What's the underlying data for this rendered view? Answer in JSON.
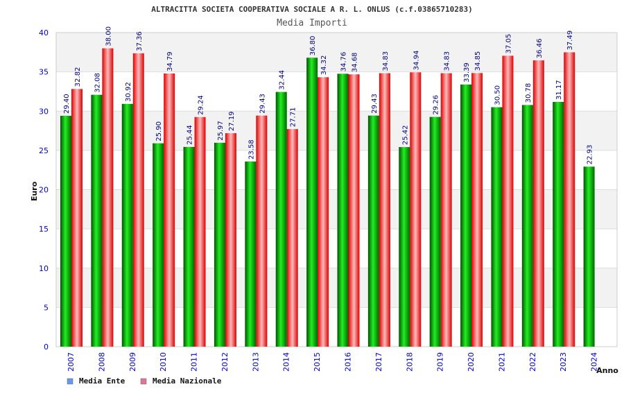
{
  "chart_data": {
    "type": "bar",
    "title": "ALTRACITTA SOCIETA COOPERATIVA SOCIALE A R. L. ONLUS (c.f.03865710283)",
    "subtitle": "Media Importi",
    "xlabel": "Anno",
    "ylabel": "Euro",
    "ylim": [
      0,
      40
    ],
    "yticks": [
      0,
      5,
      10,
      15,
      20,
      25,
      30,
      35,
      40
    ],
    "grid": "horizontal bands",
    "legend_position": "bottom-left",
    "categories": [
      "2007",
      "2008",
      "2009",
      "2010",
      "2011",
      "2012",
      "2013",
      "2014",
      "2015",
      "2016",
      "2017",
      "2018",
      "2019",
      "2020",
      "2021",
      "2022",
      "2023",
      "2024"
    ],
    "series": [
      {
        "name": "Media Ente",
        "color": "#00aa00",
        "legend_color": "#6699ee",
        "values": [
          29.4,
          32.08,
          30.92,
          25.9,
          25.44,
          25.97,
          23.58,
          32.44,
          36.8,
          34.76,
          29.43,
          25.42,
          29.26,
          33.39,
          30.5,
          30.78,
          31.17,
          22.93
        ],
        "labels": [
          "29.40",
          "32.08",
          "30.92",
          "25.90",
          "25.44",
          "25.97",
          "23.58",
          "32.44",
          "36.80",
          "34.76",
          "29.43",
          "25.42",
          "29.26",
          "33.39",
          "30.50",
          "30.78",
          "31.17",
          "22.93"
        ]
      },
      {
        "name": "Media Nazionale",
        "color": "#ee1111",
        "legend_color": "#dd7799",
        "values": [
          32.82,
          38.0,
          37.36,
          34.79,
          29.24,
          27.19,
          29.43,
          27.71,
          34.32,
          34.68,
          34.83,
          34.94,
          34.83,
          34.85,
          37.05,
          36.46,
          37.49,
          null
        ],
        "labels": [
          "32.82",
          "38.00",
          "37.36",
          "34.79",
          "29.24",
          "27.19",
          "29.43",
          "27.71",
          "34.32",
          "34.68",
          "34.83",
          "34.94",
          "34.83",
          "34.85",
          "37.05",
          "36.46",
          "37.49",
          ""
        ]
      }
    ]
  }
}
